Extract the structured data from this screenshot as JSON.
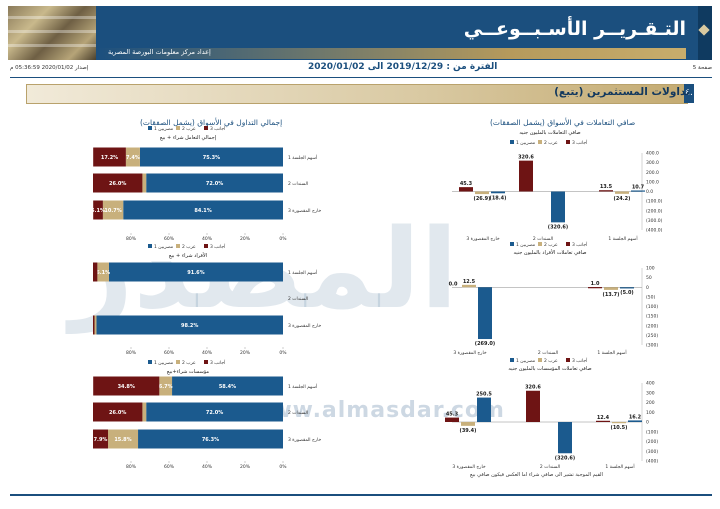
{
  "header": {
    "title": "التـقـريــر الأسـبــوعــي",
    "org_name": "إعداد مركز معلومات البورصة المصرية",
    "issued": "إصدار 2020/01/02 05:36:59 م",
    "period": "الفترة من : 2019/12/29 الى 2020/01/02",
    "page": "صفحة 5"
  },
  "section": {
    "number": "٤.",
    "title": "تداولات المستثمرين (يتبع)"
  },
  "panels": {
    "left_title": "إجمالي التداول في الأسواق (يشمل الصفقات)",
    "right_title": "صافي التعاملات في الأسواق (يشمل الصفقات)"
  },
  "watermark": "المصدر",
  "watermark_url": "www.almasdar.com",
  "footnote": "القيم الموجبة تشير الى صافي شراء اما العكس فيكون صافي بيع",
  "colors": {
    "egyptians": "#1b5a8e",
    "arabs": "#c8b07c",
    "foreigners": "#6e1414"
  },
  "legend": {
    "egyptians": "مصريين 1",
    "arabs": "عرب 2",
    "foreigners": "أجانب 3"
  },
  "chart_data": [
    {
      "type": "bar",
      "orientation": "horizontal",
      "stacked": true,
      "title": "إجمالي التعامل شراء + بيع",
      "categories": [
        "أسهم الجلسة 1",
        "السندات 2",
        "خارج المقصورة 3"
      ],
      "series": [
        {
          "name": "مصريين 1",
          "values": [
            75.3,
            72.0,
            84.1
          ],
          "labels": [
            "75.3%",
            "72.0%",
            "84.1%"
          ]
        },
        {
          "name": "عرب 2",
          "values": [
            7.4,
            2.0,
            10.7
          ],
          "labels": [
            "7.4%",
            "",
            "10.7%"
          ]
        },
        {
          "name": "أجانب 3",
          "values": [
            17.2,
            26.0,
            5.1
          ],
          "labels": [
            "17.2%",
            "26.0%",
            "5.1%"
          ]
        }
      ],
      "xticks": [
        "0%",
        "20%",
        "40%",
        "60%",
        "80%"
      ],
      "xlim": [
        0,
        100
      ]
    },
    {
      "type": "bar",
      "orientation": "horizontal",
      "stacked": true,
      "title": "الأفراد شراء + بيع",
      "categories": [
        "أسهم الجلسة 1",
        "السندات 2",
        "خارج المقصورة 3"
      ],
      "series": [
        {
          "name": "مصريين 1",
          "values": [
            91.6,
            0,
            98.2
          ],
          "labels": [
            "91.6%",
            "",
            "98.2%"
          ]
        },
        {
          "name": "عرب 2",
          "values": [
            6.1,
            0,
            1.0
          ],
          "labels": [
            "6.1%",
            "",
            ""
          ]
        },
        {
          "name": "أجانب 3",
          "values": [
            2.3,
            0,
            0.8
          ],
          "labels": [
            "",
            "",
            ""
          ]
        }
      ],
      "xticks": [
        "0%",
        "20%",
        "40%",
        "60%",
        "80%"
      ],
      "xlim": [
        0,
        100
      ]
    },
    {
      "type": "bar",
      "orientation": "horizontal",
      "stacked": true,
      "title": "مؤسسات شراء+بيع",
      "categories": [
        "أسهم الجلسة 1",
        "السندات 2",
        "خارج المقصورة 3"
      ],
      "series": [
        {
          "name": "مصريين 1",
          "values": [
            58.4,
            72.0,
            76.3
          ],
          "labels": [
            "58.4%",
            "72.0%",
            "76.3%"
          ]
        },
        {
          "name": "عرب 2",
          "values": [
            6.7,
            2.0,
            15.8
          ],
          "labels": [
            "6.7%",
            "",
            "15.8%"
          ]
        },
        {
          "name": "أجانب 3",
          "values": [
            34.8,
            26.0,
            7.9
          ],
          "labels": [
            "34.8%",
            "26.0%",
            "7.9%"
          ]
        }
      ],
      "xticks": [
        "0%",
        "20%",
        "40%",
        "60%",
        "80%"
      ],
      "xlim": [
        0,
        100
      ]
    },
    {
      "type": "bar",
      "orientation": "vertical",
      "title": "صافي التعاملات بالمليون جنيه",
      "categories": [
        "خارج المقصورة 3",
        "السندات 2",
        "أسهم الجلسة 1"
      ],
      "series": [
        {
          "name": "مصريين 1",
          "values": [
            -18.4,
            -320.6,
            10.7
          ]
        },
        {
          "name": "عرب 2",
          "values": [
            -26.9,
            0,
            -24.2
          ]
        },
        {
          "name": "أجانب 3",
          "values": [
            45.3,
            320.6,
            13.5
          ]
        }
      ],
      "value_labels": [
        [
          "(18.4)",
          "(320.6)",
          "10.7"
        ],
        [
          "(26.9)",
          "",
          "(24.2)"
        ],
        [
          "45.3",
          "320.6",
          "13.5"
        ]
      ],
      "yticks": [
        "400.0",
        "300.0",
        "200.0",
        "100.0",
        "0.0",
        "(100.0)",
        "(200.0)",
        "(300.0)",
        "(400.0)"
      ],
      "ylim": [
        -400,
        400
      ]
    },
    {
      "type": "bar",
      "orientation": "vertical",
      "title": "صافي تعاملات الأفراد بالمليون جنيه",
      "categories": [
        "خارج المقصورة 3",
        "السندات 2",
        "أسهم الجلسة 1"
      ],
      "series": [
        {
          "name": "مصريين 1",
          "values": [
            -269.0,
            0,
            -5.0
          ]
        },
        {
          "name": "عرب 2",
          "values": [
            12.5,
            0,
            -13.7
          ]
        },
        {
          "name": "أجانب 3",
          "values": [
            0.0,
            0,
            1.0
          ]
        }
      ],
      "value_labels": [
        [
          "(269.0)",
          "",
          "(5.0)"
        ],
        [
          "12.5",
          "",
          "(13.7)"
        ],
        [
          "0.0",
          "",
          "1.0"
        ]
      ],
      "yticks": [
        "100",
        "50",
        "0",
        "(50)",
        "(100)",
        "(150)",
        "(200)",
        "(250)",
        "(300)"
      ],
      "ylim": [
        -300,
        100
      ]
    },
    {
      "type": "bar",
      "orientation": "vertical",
      "title": "صافي تعاملات المؤسسات بالمليون جنيه",
      "categories": [
        "خارج المقصورة 3",
        "السندات 2",
        "أسهم الجلسة 1"
      ],
      "series": [
        {
          "name": "مصريين 1",
          "values": [
            250.5,
            -320.6,
            16.2
          ]
        },
        {
          "name": "عرب 2",
          "values": [
            -39.4,
            0,
            -10.5
          ]
        },
        {
          "name": "أجانب 3",
          "values": [
            45.3,
            320.6,
            12.4
          ]
        }
      ],
      "value_labels": [
        [
          "250.5",
          "(320.6)",
          "16.2"
        ],
        [
          "(39.4)",
          "",
          "(10.5)"
        ],
        [
          "45.3",
          "320.6",
          "12.4"
        ]
      ],
      "yticks": [
        "400",
        "300",
        "200",
        "100",
        "0",
        "(100)",
        "(200)",
        "(300)",
        "(400)"
      ],
      "ylim": [
        -400,
        400
      ]
    }
  ]
}
